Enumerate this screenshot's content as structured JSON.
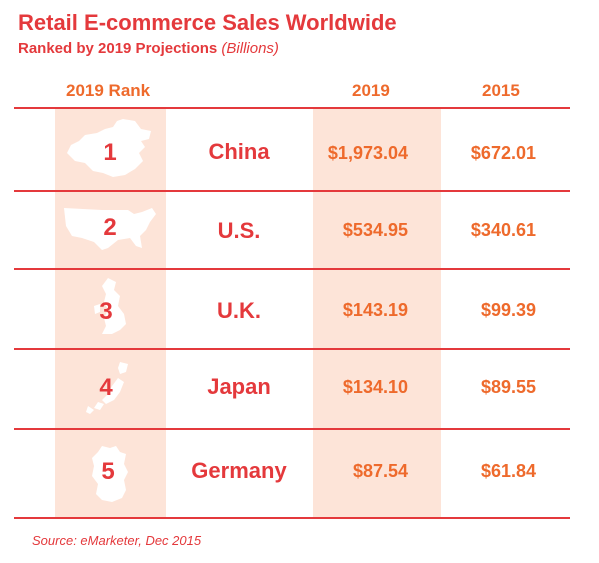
{
  "header": {
    "title": "Retail E-commerce Sales Worldwide",
    "subtitle": "Ranked by 2019 Projections",
    "subtitle_unit": "(Billions)"
  },
  "columns": {
    "rank": "2019 Rank",
    "y2019": "2019",
    "y2015": "2015"
  },
  "chart_data": {
    "type": "table",
    "title": "Retail E-commerce Sales Worldwide",
    "subtitle": "Ranked by 2019 Projections (Billions)",
    "columns": [
      "2019 Rank",
      "",
      "2019",
      "2015"
    ],
    "rows": [
      {
        "rank": "1",
        "country": "China",
        "y2019": "$1,973.04",
        "y2015": "$672.01",
        "v2019": 1973.04,
        "v2015": 672.01
      },
      {
        "rank": "2",
        "country": "U.S.",
        "y2019": "$534.95",
        "y2015": "$340.61",
        "v2019": 534.95,
        "v2015": 340.61
      },
      {
        "rank": "3",
        "country": "U.K.",
        "y2019": "$143.19",
        "y2015": "$99.39",
        "v2019": 143.19,
        "v2015": 99.39
      },
      {
        "rank": "4",
        "country": "Japan",
        "y2019": "$134.10",
        "y2015": "$89.55",
        "v2019": 134.1,
        "v2015": 89.55
      },
      {
        "rank": "5",
        "country": "Germany",
        "y2019": "$87.54",
        "y2015": "$61.84",
        "v2019": 87.54,
        "v2015": 61.84
      }
    ]
  },
  "footer": {
    "source": "Source: eMarketer, Dec 2015"
  },
  "colors": {
    "title_red": "#e4393c",
    "value_orange": "#ee6a2c",
    "column_shade": "#fde4d8"
  }
}
